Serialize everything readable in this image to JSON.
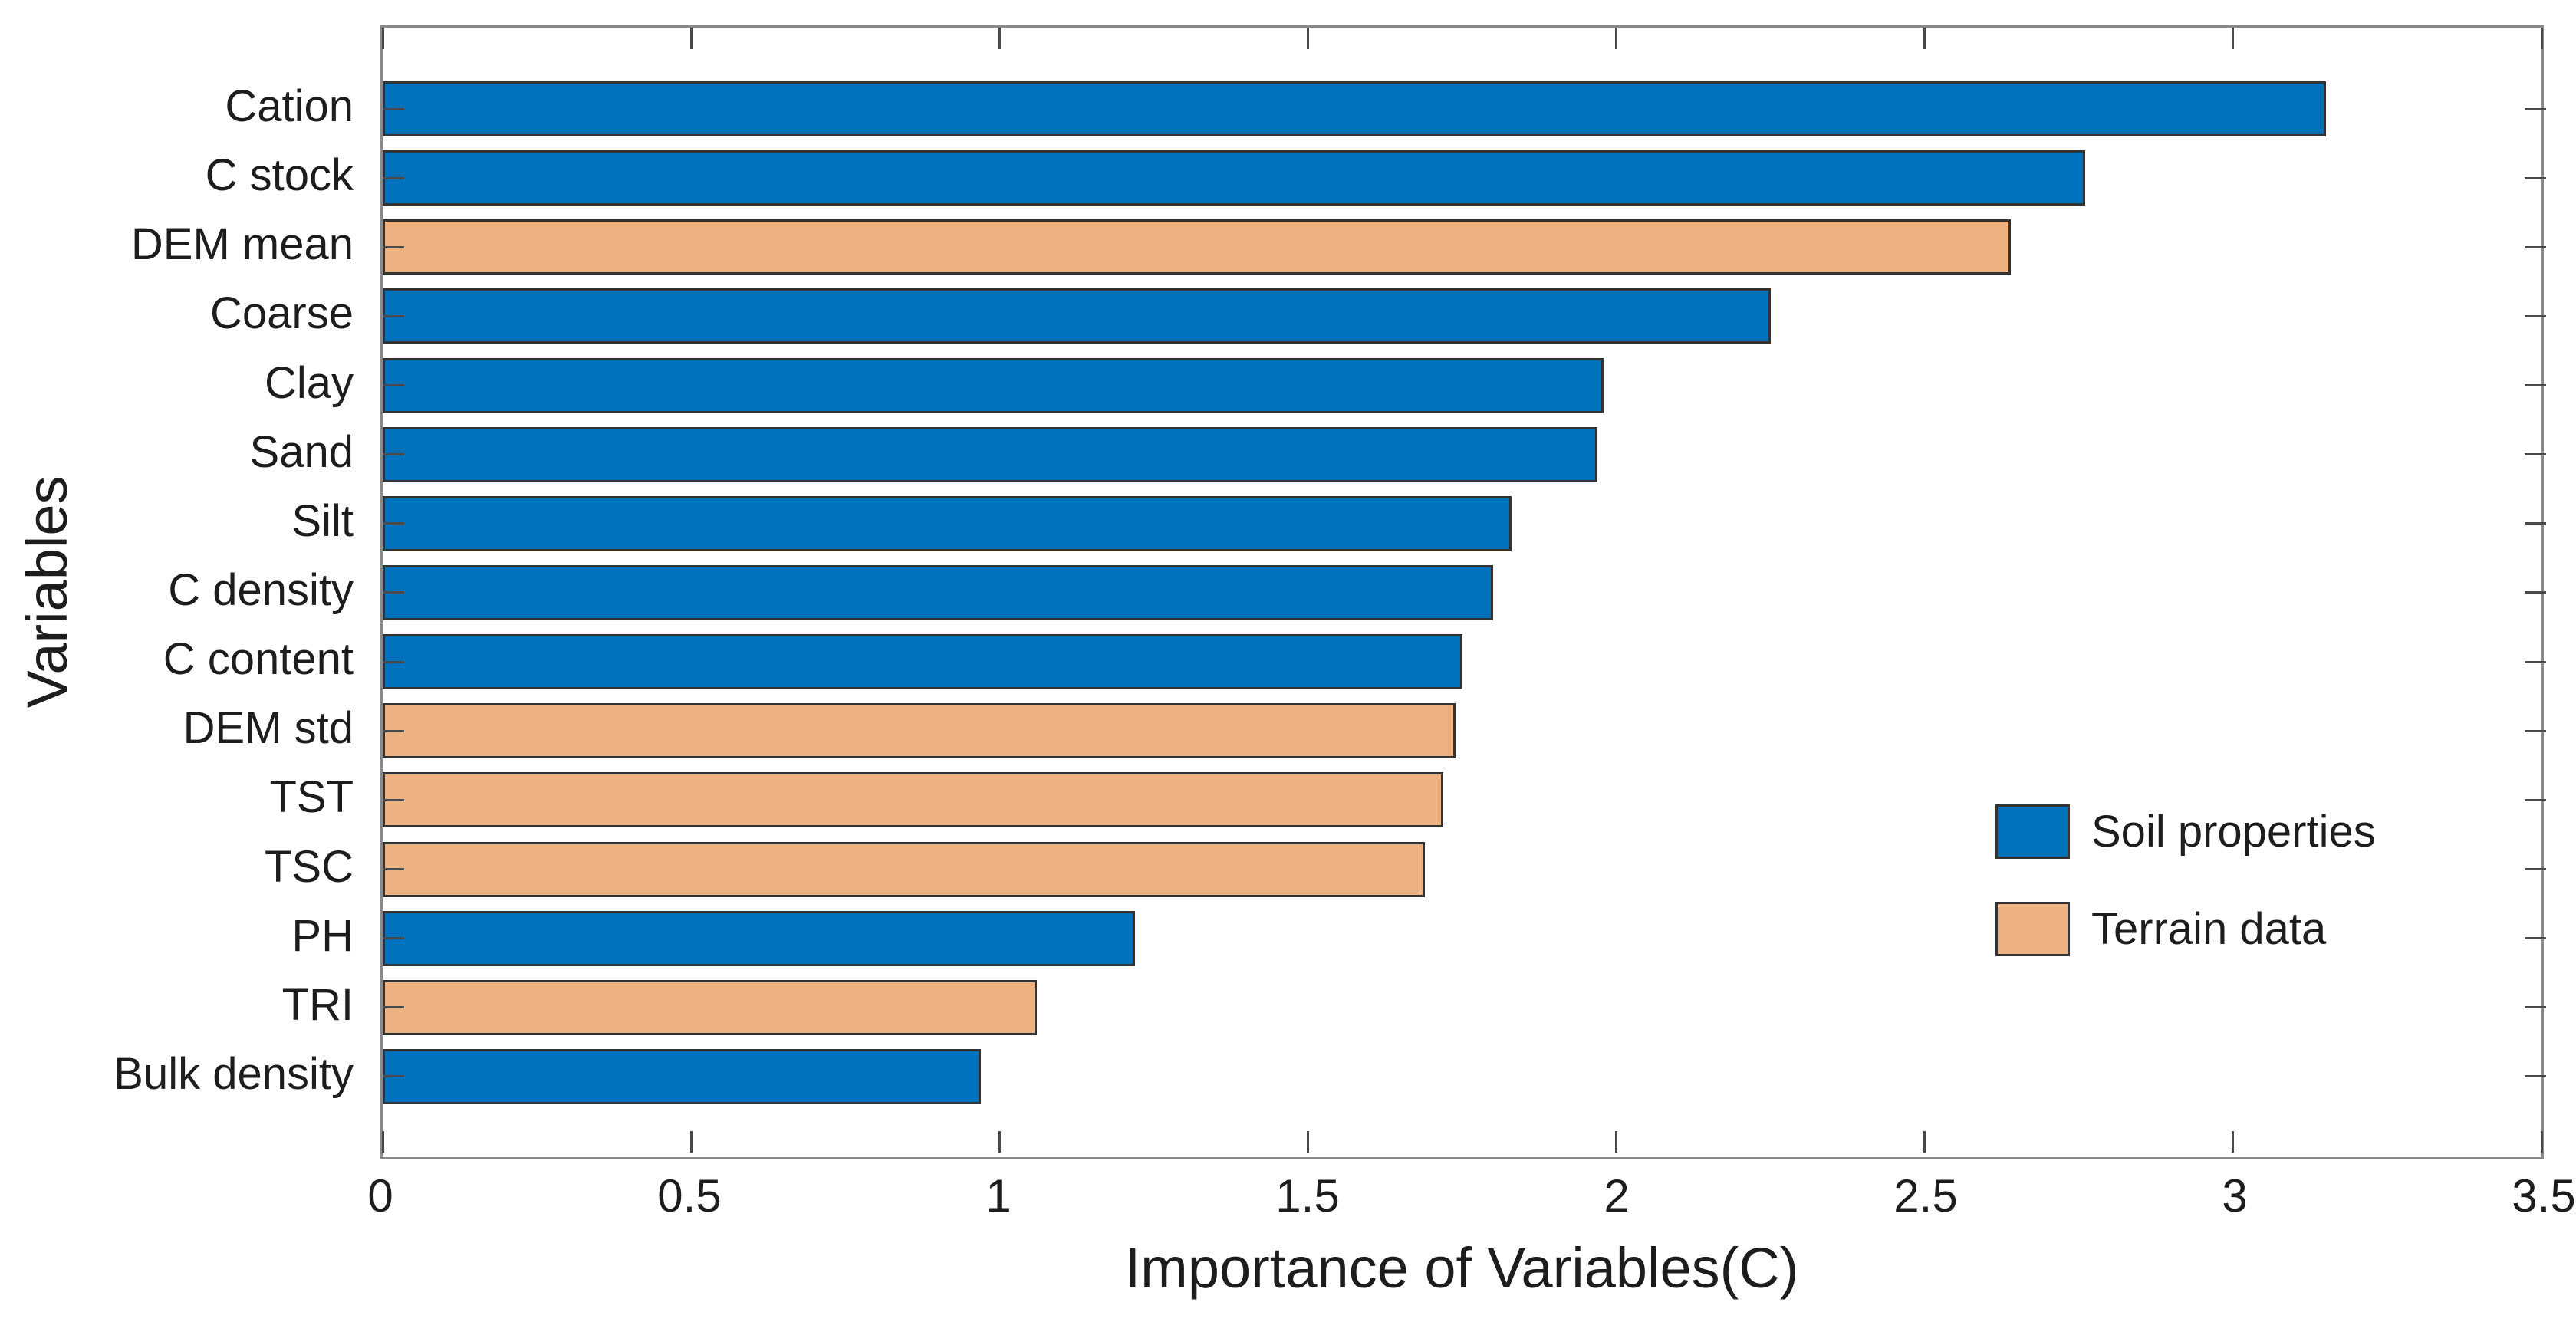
{
  "chart_data": {
    "type": "bar",
    "orientation": "horizontal",
    "title": "",
    "xlabel": "Importance of Variables(C)",
    "ylabel": "Variables",
    "xlim": [
      0,
      3.5
    ],
    "xticks": [
      0,
      0.5,
      1,
      1.5,
      2,
      2.5,
      3,
      3.5
    ],
    "xtick_labels": [
      "0",
      "0.5",
      "1",
      "1.5",
      "2",
      "2.5",
      "3",
      "3.5"
    ],
    "grid": false,
    "box": "on",
    "tick_direction": "in",
    "categories": [
      "Cation",
      "C stock",
      "DEM mean",
      "Coarse",
      "Clay",
      "Sand",
      "Silt",
      "C density",
      "C content",
      "DEM std",
      "TST",
      "TSC",
      "PH",
      "TRI",
      "Bulk density"
    ],
    "values": [
      3.15,
      2.76,
      2.64,
      2.25,
      1.98,
      1.97,
      1.83,
      1.8,
      1.75,
      1.74,
      1.72,
      1.69,
      1.22,
      1.06,
      0.97
    ],
    "groups": [
      "soil",
      "soil",
      "terrain",
      "soil",
      "soil",
      "soil",
      "soil",
      "soil",
      "soil",
      "terrain",
      "terrain",
      "terrain",
      "soil",
      "terrain",
      "soil"
    ],
    "colors": {
      "soil": "#0072BD",
      "terrain": "#EEB180",
      "bar_edge": "#333333",
      "axis_box": "#8a8a8a",
      "tick": "#4a4a4a",
      "text": "#1d1d1d"
    },
    "legend": {
      "position": "right-middle-inside",
      "entries": [
        {
          "key": "soil",
          "label": "Soil properties",
          "color": "#0072BD"
        },
        {
          "key": "terrain",
          "label": "Terrain data",
          "color": "#EEB180"
        }
      ]
    }
  }
}
